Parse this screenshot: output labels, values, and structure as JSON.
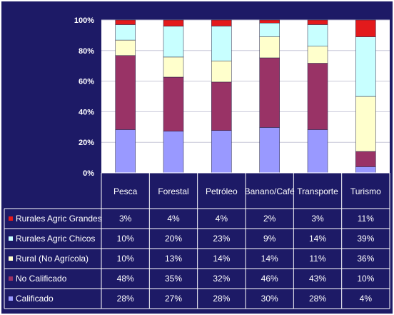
{
  "colors": {
    "background": "#1d1a66",
    "plot_area": "#ffffff",
    "grid_line": "#c8c8d8",
    "Rurales Agric Grandes": "#e31a1c",
    "Rurales Agric Chicos": "#c8ffff",
    "Rural (No Agrícola)": "#ffffcc",
    "No Calificado": "#993366",
    "Calificado": "#9999ff"
  },
  "chart_data": {
    "type": "bar",
    "stacked": true,
    "categories": [
      "Pesca",
      "Forestal",
      "Petróleo",
      "Banano/Café",
      "Transporte",
      "Turismo"
    ],
    "series": [
      {
        "name": "Calificado",
        "values": [
          28,
          27,
          28,
          30,
          28,
          4
        ]
      },
      {
        "name": "No Calificado",
        "values": [
          48,
          35,
          32,
          46,
          43,
          10
        ]
      },
      {
        "name": "Rural (No Agrícola)",
        "values": [
          10,
          13,
          14,
          14,
          11,
          36
        ]
      },
      {
        "name": "Rurales Agric Chicos",
        "values": [
          10,
          20,
          23,
          9,
          14,
          39
        ]
      },
      {
        "name": "Rurales Agric Grandes",
        "values": [
          3,
          4,
          4,
          2,
          3,
          11
        ]
      }
    ],
    "table_rows": [
      {
        "name": "Rurales Agric Grandes",
        "cells": [
          "3%",
          "4%",
          "4%",
          "2%",
          "3%",
          "11%"
        ]
      },
      {
        "name": "Rurales Agric Chicos",
        "cells": [
          "10%",
          "20%",
          "23%",
          "9%",
          "14%",
          "39%"
        ]
      },
      {
        "name": "Rural (No Agrícola)",
        "cells": [
          "10%",
          "13%",
          "14%",
          "14%",
          "11%",
          "36%"
        ]
      },
      {
        "name": "No Calificado",
        "cells": [
          "48%",
          "35%",
          "32%",
          "46%",
          "43%",
          "10%"
        ]
      },
      {
        "name": "Calificado",
        "cells": [
          "28%",
          "27%",
          "28%",
          "30%",
          "28%",
          "4%"
        ]
      }
    ],
    "y_ticks": [
      "0%",
      "20%",
      "40%",
      "60%",
      "80%",
      "100%"
    ],
    "ylim": [
      0,
      100
    ],
    "grid": true,
    "legend": "data-table"
  }
}
